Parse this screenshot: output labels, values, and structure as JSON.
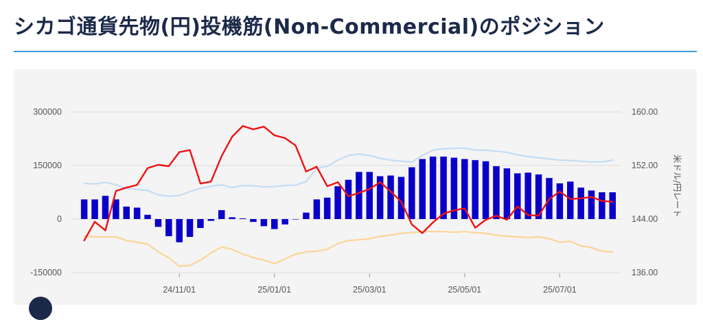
{
  "header": {
    "title": "シカゴ通貨先物(円)投機筋(Non-Commercial)のポジション"
  },
  "colors": {
    "net_bar": "#0a00c8",
    "rate_line": "#ee1111",
    "long_line": "#c4dcf4",
    "short_line": "#fcd595",
    "grid": "#dddddd"
  },
  "chart_data": {
    "type": "bar+line",
    "x_tick_labels": [
      "24/11/01",
      "25/01/01",
      "25/03/01",
      "25/05/01",
      "25/07/01"
    ],
    "x_tick_index": [
      9,
      18,
      27,
      36,
      45
    ],
    "left_axis": {
      "ticks": [
        "300000",
        "150000",
        "0",
        "-150000"
      ],
      "range": [
        -150000,
        300000
      ]
    },
    "right_axis": {
      "title": "米ドル/円レート",
      "ticks": [
        "160.00",
        "152.00",
        "144.00",
        "136.00"
      ],
      "range": [
        136,
        160
      ]
    },
    "series": [
      {
        "kind": "bar",
        "values": [
          55000,
          55000,
          65000,
          55000,
          35000,
          32000,
          12000,
          -22000,
          -48000,
          -65000,
          -50000,
          -25000,
          -5000,
          25000,
          5000,
          2000,
          -8000,
          -20000,
          -28000,
          -15000,
          0,
          18000,
          55000,
          60000,
          92000,
          110000,
          132000,
          132000,
          120000,
          122000,
          118000,
          145000,
          168000,
          175000,
          175000,
          172000,
          168000,
          165000,
          162000,
          148000,
          142000,
          128000,
          130000,
          125000,
          115000,
          100000,
          105000,
          88000,
          80000,
          75000,
          75000
        ]
      },
      {
        "kind": "line",
        "axis": "right",
        "values": [
          140.8,
          143.6,
          142.3,
          148.2,
          148.7,
          149.1,
          151.6,
          152.1,
          151.9,
          154.0,
          154.3,
          149.3,
          149.6,
          153.4,
          156.3,
          157.9,
          157.4,
          157.8,
          156.5,
          156.1,
          155.0,
          151.1,
          151.8,
          148.9,
          149.5,
          147.4,
          147.9,
          148.5,
          149.5,
          148.1,
          146.6,
          143.2,
          141.9,
          143.5,
          144.8,
          145.3,
          145.6,
          142.7,
          143.9,
          144.5,
          143.9,
          145.9,
          144.6,
          144.5,
          147.0,
          148.1,
          147.0,
          147.1,
          147.3,
          146.7,
          146.6
        ]
      },
      {
        "kind": "line",
        "values": [
          100000,
          98000,
          103000,
          96000,
          86000,
          83000,
          80000,
          68000,
          64000,
          66000,
          77000,
          86000,
          92000,
          96000,
          88000,
          94000,
          93000,
          90000,
          91000,
          94000,
          95000,
          105000,
          142000,
          148000,
          165000,
          178000,
          182000,
          178000,
          170000,
          165000,
          162000,
          160000,
          178000,
          193000,
          197000,
          198000,
          199000,
          193000,
          193000,
          190000,
          187000,
          180000,
          175000,
          172000,
          168000,
          165000,
          164000,
          162000,
          160000,
          160000,
          165000
        ]
      },
      {
        "kind": "line",
        "values": [
          -48000,
          -50000,
          -50000,
          -50000,
          -60000,
          -65000,
          -70000,
          -92000,
          -108000,
          -132000,
          -130000,
          -115000,
          -95000,
          -78000,
          -85000,
          -98000,
          -108000,
          -115000,
          -125000,
          -112000,
          -98000,
          -92000,
          -90000,
          -85000,
          -68000,
          -60000,
          -58000,
          -55000,
          -48000,
          -45000,
          -40000,
          -38000,
          -35000,
          -35000,
          -35000,
          -37000,
          -35000,
          -38000,
          -40000,
          -45000,
          -48000,
          -50000,
          -52000,
          -50000,
          -55000,
          -65000,
          -62000,
          -75000,
          -80000,
          -90000,
          -92000
        ]
      }
    ],
    "grid": true
  }
}
